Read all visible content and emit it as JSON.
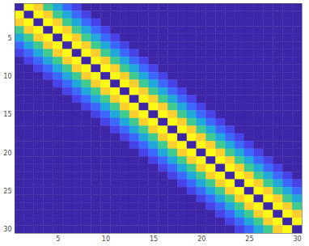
{
  "chart_data": {
    "type": "heatmap",
    "x": [
      1,
      2,
      3,
      4,
      5,
      6,
      7,
      8,
      9,
      10,
      11,
      12,
      13,
      14,
      15,
      16,
      17,
      18,
      19,
      20,
      21,
      22,
      23,
      24,
      25,
      26,
      27,
      28,
      29,
      30
    ],
    "y": [
      1,
      2,
      3,
      4,
      5,
      6,
      7,
      8,
      9,
      10,
      11,
      12,
      13,
      14,
      15,
      16,
      17,
      18,
      19,
      20,
      21,
      22,
      23,
      24,
      25,
      26,
      27,
      28,
      29,
      30
    ],
    "xlim": [
      0.5,
      30.5
    ],
    "ylim": [
      30.5,
      0.5
    ],
    "xticks": [
      5,
      10,
      15,
      20,
      25,
      30
    ],
    "yticks": [
      5,
      10,
      15,
      20,
      25,
      30
    ],
    "cells": [
      [
        0,
        10,
        9,
        6,
        4,
        2,
        1,
        0,
        0,
        0,
        0,
        0,
        0,
        0,
        0,
        0,
        0,
        0,
        0,
        0,
        0,
        0,
        0,
        0,
        0,
        0,
        0,
        0,
        0,
        0
      ],
      [
        10,
        0,
        10,
        9,
        6,
        4,
        2,
        1,
        0,
        0,
        0,
        0,
        0,
        0,
        0,
        0,
        0,
        0,
        0,
        0,
        0,
        0,
        0,
        0,
        0,
        0,
        0,
        0,
        0,
        0
      ],
      [
        9,
        10,
        0,
        10,
        9,
        6,
        4,
        2,
        1,
        0,
        0,
        0,
        0,
        0,
        0,
        0,
        0,
        0,
        0,
        0,
        0,
        0,
        0,
        0,
        0,
        0,
        0,
        0,
        0,
        0
      ],
      [
        6,
        9,
        10,
        0,
        10,
        9,
        6,
        4,
        2,
        1,
        0,
        0,
        0,
        0,
        0,
        0,
        0,
        0,
        0,
        0,
        0,
        0,
        0,
        0,
        0,
        0,
        0,
        0,
        0,
        0
      ],
      [
        4,
        6,
        9,
        10,
        0,
        10,
        9,
        6,
        4,
        2,
        1,
        0,
        0,
        0,
        0,
        0,
        0,
        0,
        0,
        0,
        0,
        0,
        0,
        0,
        0,
        0,
        0,
        0,
        0,
        0
      ],
      [
        2,
        4,
        6,
        9,
        10,
        0,
        10,
        9,
        6,
        4,
        2,
        1,
        0,
        0,
        0,
        0,
        0,
        0,
        0,
        0,
        0,
        0,
        0,
        0,
        0,
        0,
        0,
        0,
        0,
        0
      ],
      [
        1,
        2,
        4,
        6,
        9,
        10,
        0,
        10,
        9,
        6,
        4,
        2,
        1,
        0,
        0,
        0,
        0,
        0,
        0,
        0,
        0,
        0,
        0,
        0,
        0,
        0,
        0,
        0,
        0,
        0
      ],
      [
        0,
        1,
        2,
        4,
        6,
        9,
        10,
        0,
        10,
        9,
        6,
        4,
        2,
        1,
        0,
        0,
        0,
        0,
        0,
        0,
        0,
        0,
        0,
        0,
        0,
        0,
        0,
        0,
        0,
        0
      ],
      [
        0,
        0,
        1,
        2,
        4,
        6,
        9,
        10,
        0,
        10,
        9,
        6,
        4,
        2,
        1,
        0,
        0,
        0,
        0,
        0,
        0,
        0,
        0,
        0,
        0,
        0,
        0,
        0,
        0,
        0
      ],
      [
        0,
        0,
        0,
        1,
        2,
        4,
        6,
        9,
        10,
        0,
        10,
        9,
        6,
        4,
        2,
        1,
        0,
        0,
        0,
        0,
        0,
        0,
        0,
        0,
        0,
        0,
        0,
        0,
        0,
        0
      ],
      [
        0,
        0,
        0,
        0,
        1,
        2,
        4,
        6,
        9,
        10,
        0,
        10,
        9,
        6,
        4,
        2,
        1,
        0,
        0,
        0,
        0,
        0,
        0,
        0,
        0,
        0,
        0,
        0,
        0,
        0
      ],
      [
        0,
        0,
        0,
        0,
        0,
        1,
        2,
        4,
        6,
        9,
        10,
        0,
        10,
        9,
        6,
        4,
        2,
        1,
        0,
        0,
        0,
        0,
        0,
        0,
        0,
        0,
        0,
        0,
        0,
        0
      ],
      [
        0,
        0,
        0,
        0,
        0,
        0,
        1,
        2,
        4,
        6,
        9,
        10,
        0,
        10,
        9,
        6,
        4,
        2,
        1,
        0,
        0,
        0,
        0,
        0,
        0,
        0,
        0,
        0,
        0,
        0
      ],
      [
        0,
        0,
        0,
        0,
        0,
        0,
        0,
        1,
        2,
        4,
        6,
        9,
        10,
        0,
        10,
        9,
        6,
        4,
        2,
        1,
        0,
        0,
        0,
        0,
        0,
        0,
        0,
        0,
        0,
        0
      ],
      [
        0,
        0,
        0,
        0,
        0,
        0,
        0,
        0,
        1,
        2,
        4,
        6,
        9,
        10,
        0,
        10,
        9,
        6,
        4,
        2,
        1,
        0,
        0,
        0,
        0,
        0,
        0,
        0,
        0,
        0
      ],
      [
        0,
        0,
        0,
        0,
        0,
        0,
        0,
        0,
        0,
        1,
        2,
        4,
        6,
        9,
        10,
        0,
        10,
        9,
        6,
        4,
        2,
        1,
        0,
        0,
        0,
        0,
        0,
        0,
        0,
        0
      ],
      [
        0,
        0,
        0,
        0,
        0,
        0,
        0,
        0,
        0,
        0,
        1,
        2,
        4,
        6,
        9,
        10,
        0,
        10,
        9,
        6,
        4,
        2,
        1,
        0,
        0,
        0,
        0,
        0,
        0,
        0
      ],
      [
        0,
        0,
        0,
        0,
        0,
        0,
        0,
        0,
        0,
        0,
        0,
        1,
        2,
        4,
        6,
        9,
        10,
        0,
        10,
        9,
        6,
        4,
        2,
        1,
        0,
        0,
        0,
        0,
        0,
        0
      ],
      [
        0,
        0,
        0,
        0,
        0,
        0,
        0,
        0,
        0,
        0,
        0,
        0,
        1,
        2,
        4,
        6,
        9,
        10,
        0,
        10,
        9,
        6,
        4,
        2,
        1,
        0,
        0,
        0,
        0,
        0
      ],
      [
        0,
        0,
        0,
        0,
        0,
        0,
        0,
        0,
        0,
        0,
        0,
        0,
        0,
        1,
        2,
        4,
        6,
        9,
        10,
        0,
        10,
        9,
        6,
        4,
        2,
        1,
        0,
        0,
        0,
        0
      ],
      [
        0,
        0,
        0,
        0,
        0,
        0,
        0,
        0,
        0,
        0,
        0,
        0,
        0,
        0,
        1,
        2,
        4,
        6,
        9,
        10,
        0,
        10,
        9,
        6,
        4,
        2,
        1,
        0,
        0,
        0
      ],
      [
        0,
        0,
        0,
        0,
        0,
        0,
        0,
        0,
        0,
        0,
        0,
        0,
        0,
        0,
        0,
        1,
        2,
        4,
        6,
        9,
        10,
        0,
        10,
        9,
        6,
        4,
        2,
        1,
        0,
        0
      ],
      [
        0,
        0,
        0,
        0,
        0,
        0,
        0,
        0,
        0,
        0,
        0,
        0,
        0,
        0,
        0,
        0,
        1,
        2,
        4,
        6,
        9,
        10,
        0,
        10,
        9,
        6,
        4,
        2,
        1,
        0
      ],
      [
        0,
        0,
        0,
        0,
        0,
        0,
        0,
        0,
        0,
        0,
        0,
        0,
        0,
        0,
        0,
        0,
        0,
        1,
        2,
        4,
        6,
        9,
        10,
        0,
        10,
        9,
        6,
        4,
        2,
        1
      ],
      [
        0,
        0,
        0,
        0,
        0,
        0,
        0,
        0,
        0,
        0,
        0,
        0,
        0,
        0,
        0,
        0,
        0,
        0,
        1,
        2,
        4,
        6,
        9,
        10,
        0,
        10,
        9,
        6,
        4,
        2
      ],
      [
        0,
        0,
        0,
        0,
        0,
        0,
        0,
        0,
        0,
        0,
        0,
        0,
        0,
        0,
        0,
        0,
        0,
        0,
        0,
        1,
        2,
        4,
        6,
        9,
        10,
        0,
        10,
        9,
        6,
        4
      ],
      [
        0,
        0,
        0,
        0,
        0,
        0,
        0,
        0,
        0,
        0,
        0,
        0,
        0,
        0,
        0,
        0,
        0,
        0,
        0,
        0,
        1,
        2,
        4,
        6,
        9,
        10,
        0,
        10,
        9,
        6
      ],
      [
        0,
        0,
        0,
        0,
        0,
        0,
        0,
        0,
        0,
        0,
        0,
        0,
        0,
        0,
        0,
        0,
        0,
        0,
        0,
        0,
        0,
        1,
        2,
        4,
        6,
        9,
        10,
        0,
        10,
        9
      ],
      [
        0,
        0,
        0,
        0,
        0,
        0,
        0,
        0,
        0,
        0,
        0,
        0,
        0,
        0,
        0,
        0,
        0,
        0,
        0,
        0,
        0,
        0,
        1,
        2,
        4,
        6,
        9,
        10,
        0,
        10
      ],
      [
        0,
        0,
        0,
        0,
        0,
        0,
        0,
        0,
        0,
        0,
        0,
        0,
        0,
        0,
        0,
        0,
        0,
        0,
        0,
        0,
        0,
        0,
        0,
        1,
        2,
        4,
        6,
        9,
        10,
        0
      ]
    ]
  }
}
